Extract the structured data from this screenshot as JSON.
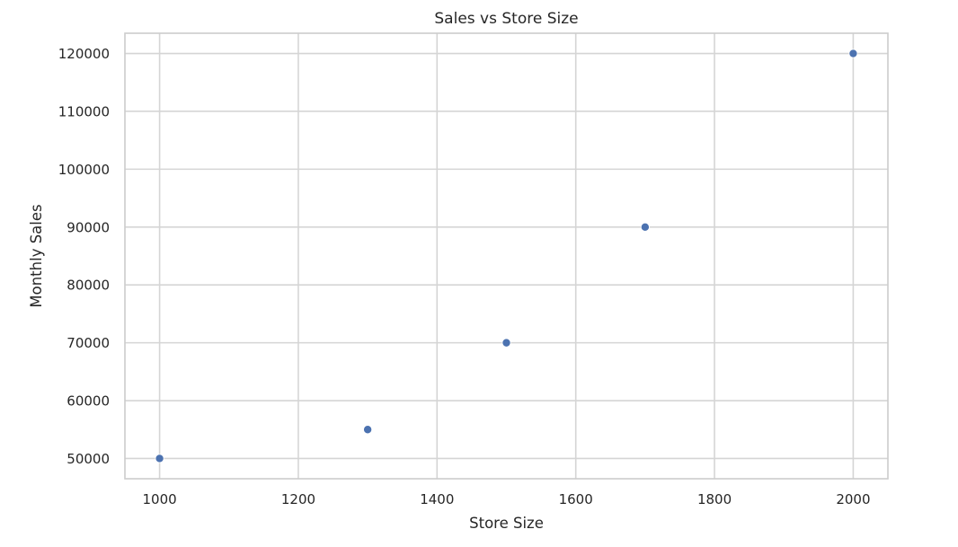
{
  "chart_data": {
    "type": "scatter",
    "title": "Sales vs Store Size",
    "xlabel": "Store Size",
    "ylabel": "Monthly Sales",
    "x": [
      1000,
      1300,
      1500,
      1700,
      2000
    ],
    "y": [
      50000,
      55000,
      70000,
      90000,
      120000
    ],
    "xlim": [
      950,
      2050
    ],
    "ylim": [
      46500,
      123500
    ],
    "xticks": [
      1000,
      1200,
      1400,
      1600,
      1800,
      2000
    ],
    "yticks": [
      50000,
      60000,
      70000,
      80000,
      90000,
      100000,
      110000,
      120000
    ],
    "grid": true,
    "marker_color": "#4c72b0",
    "grid_color": "#d5d5d5",
    "frame_color": "#cccccc"
  }
}
